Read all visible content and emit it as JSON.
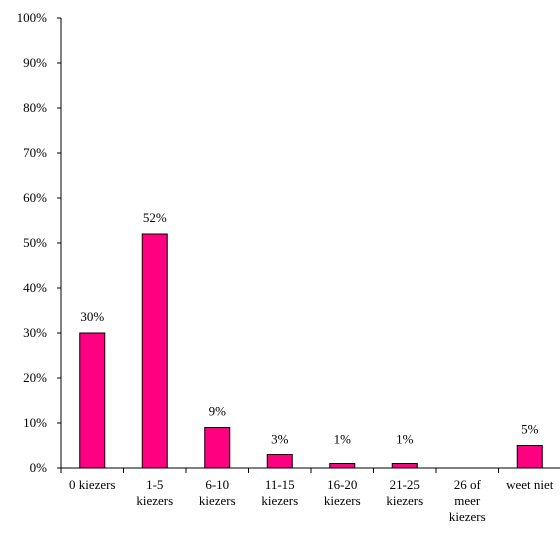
{
  "chart_data": {
    "type": "bar",
    "categories": [
      [
        "0 kiezers"
      ],
      [
        "1-5",
        "kiezers"
      ],
      [
        "6-10",
        "kiezers"
      ],
      [
        "11-15",
        "kiezers"
      ],
      [
        "16-20",
        "kiezers"
      ],
      [
        "21-25",
        "kiezers"
      ],
      [
        "26 of",
        "meer",
        "kiezers"
      ],
      [
        "weet niet"
      ]
    ],
    "values": [
      30,
      52,
      9,
      3,
      1,
      1,
      null,
      5
    ],
    "data_labels": [
      "30%",
      "52%",
      "9%",
      "3%",
      "1%",
      "1%",
      "",
      "5%"
    ],
    "y_ticks": [
      "0%",
      "10%",
      "20%",
      "30%",
      "40%",
      "50%",
      "60%",
      "70%",
      "80%",
      "90%",
      "100%"
    ],
    "ylim": [
      0,
      100
    ],
    "bar_color": "#ff0080",
    "bar_border": "#000000",
    "grid": false,
    "legend": "none",
    "title": "",
    "xlabel": "",
    "ylabel": ""
  }
}
